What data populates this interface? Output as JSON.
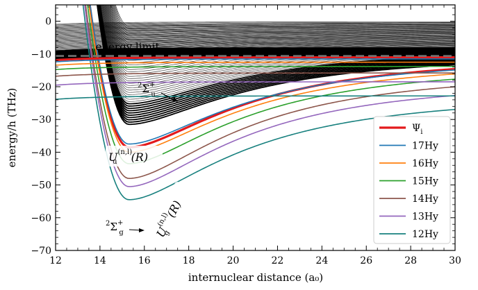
{
  "chart_data": {
    "type": "line",
    "title": "",
    "xlabel": "internuclear distance (a₀)",
    "ylabel": "energy/h (THz)",
    "xlim": [
      12,
      30
    ],
    "ylim": [
      -70,
      5
    ],
    "x_ticks": [
      12,
      14,
      16,
      18,
      20,
      22,
      24,
      26,
      28,
      30
    ],
    "y_ticks": [
      0,
      -10,
      -20,
      -30,
      -40,
      -50,
      -60,
      -70
    ],
    "grid": false,
    "legend_position": "bottom-right",
    "colors": {
      "psi": "#e31a1c",
      "17Hy": "#1f77b4",
      "16Hy": "#ff7f0e",
      "15Hy": "#2ca02c",
      "14Hy": "#8c564b",
      "13Hy": "#9467bd",
      "12Hy": "#17807e",
      "manifold": "#000000",
      "limit": "#777777"
    },
    "energy_limit": {
      "y": -10.6,
      "label": "energy limit"
    },
    "manifold_u": {
      "label": "2Σu+",
      "label_sup_left": "2",
      "label_main": "Σ",
      "label_sub": "u",
      "label_sup": "+",
      "min_x": 15.3,
      "min_y": -31.5
    },
    "manifold_g": {
      "label": "2Σg+",
      "label_sup_left": "2",
      "label_main": "Σ",
      "label_sub": "g",
      "label_sup": "+"
    },
    "curve_label_u": {
      "main": "U",
      "sub": "u",
      "sup": "(n,l)",
      "arg": "(R)"
    },
    "curve_label_g": {
      "main": "U",
      "sub": "g",
      "sup": "(n,l)",
      "arg": "(R)"
    },
    "legend": [
      {
        "key": "psi",
        "label": "Ψ",
        "sub": "i"
      },
      {
        "key": "17Hy",
        "label": "17Hy"
      },
      {
        "key": "16Hy",
        "label": "16Hy"
      },
      {
        "key": "15Hy",
        "label": "15Hy"
      },
      {
        "key": "14Hy",
        "label": "14Hy"
      },
      {
        "key": "13Hy",
        "label": "13Hy"
      },
      {
        "key": "12Hy",
        "label": "12Hy"
      }
    ],
    "series": [
      {
        "key": "psi",
        "state": "u",
        "x_min": 15.3,
        "min_y": -38.5,
        "asymptote": -11.0
      },
      {
        "key": "17Hy",
        "state": "u",
        "x_min": 15.3,
        "min_y": -37.5,
        "asymptote": -11.5
      },
      {
        "key": "16Hy",
        "state": "u",
        "x_min": 15.3,
        "min_y": -40.0,
        "asymptote": -12.5
      },
      {
        "key": "15Hy",
        "state": "u",
        "x_min": 15.3,
        "min_y": -43.5,
        "asymptote": -13.8
      },
      {
        "key": "14Hy",
        "state": "u",
        "x_min": 15.3,
        "min_y": -48.0,
        "asymptote": -15.8
      },
      {
        "key": "13Hy",
        "state": "u",
        "x_min": 15.3,
        "min_y": -50.5,
        "asymptote": -18.5
      },
      {
        "key": "12Hy",
        "state": "u",
        "x_min": 15.3,
        "min_y": -54.5,
        "asymptote": -22.8
      },
      {
        "key": "psi",
        "state": "g",
        "asymptote": -11.0
      },
      {
        "key": "17Hy",
        "state": "g",
        "asymptote": -11.5
      },
      {
        "key": "16Hy",
        "state": "g",
        "asymptote": -12.5
      },
      {
        "key": "15Hy",
        "state": "g",
        "asymptote": -13.8
      },
      {
        "key": "14Hy",
        "state": "g",
        "asymptote": -15.8
      },
      {
        "key": "13Hy",
        "state": "g",
        "asymptote": -18.5
      },
      {
        "key": "12Hy",
        "state": "g",
        "asymptote": -22.8
      }
    ]
  }
}
